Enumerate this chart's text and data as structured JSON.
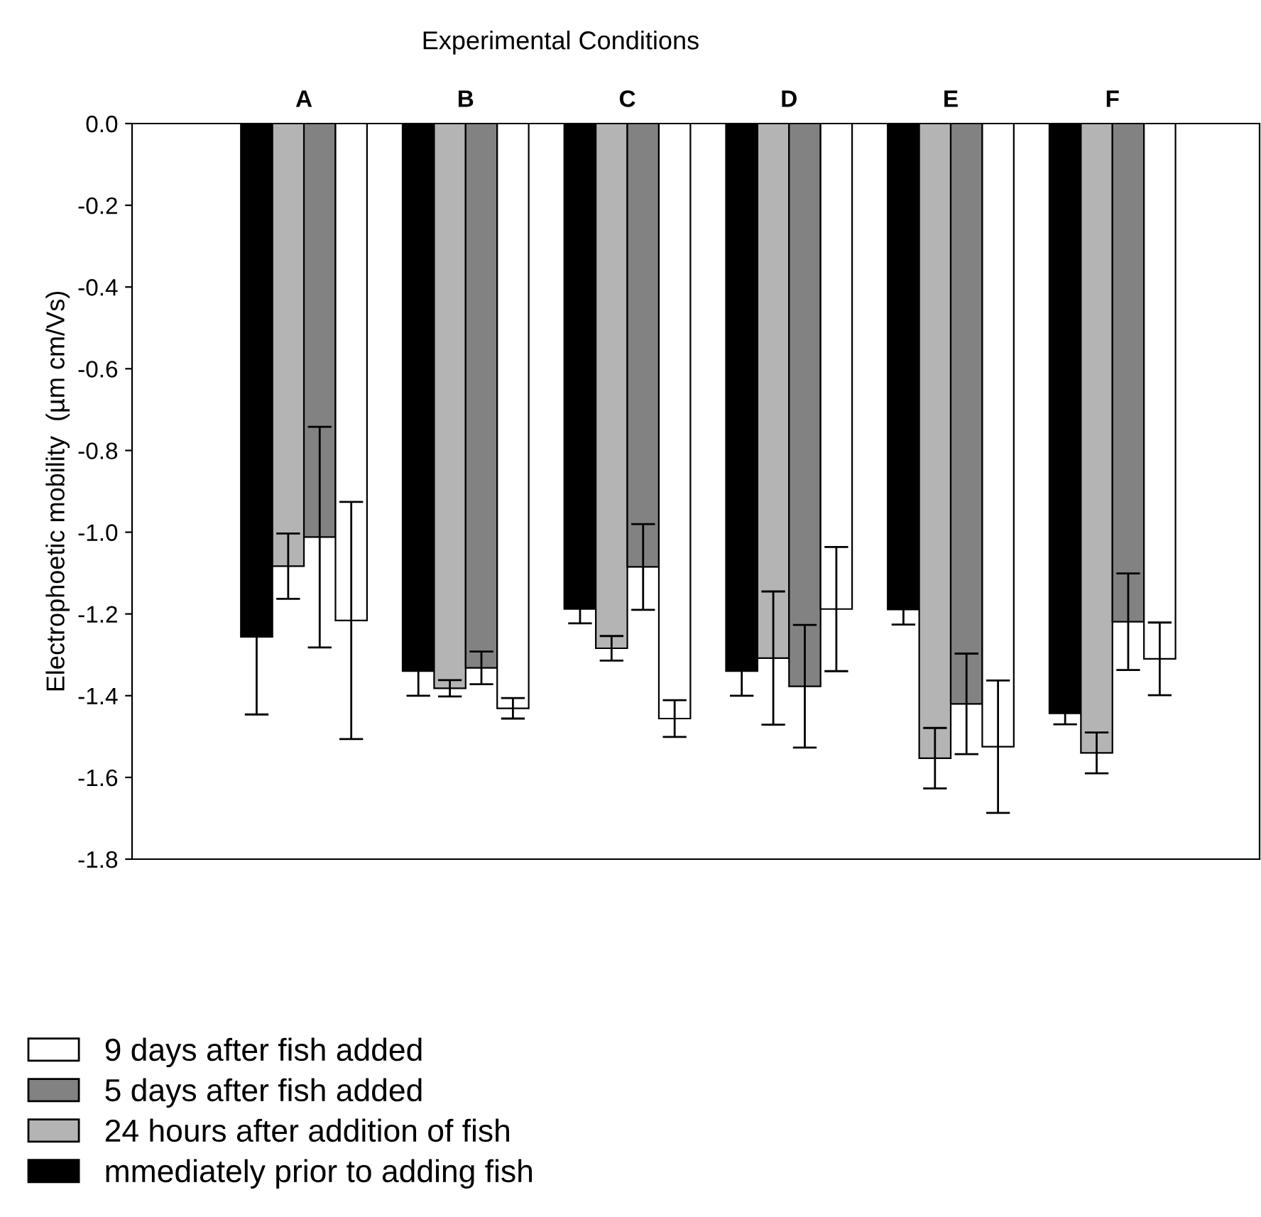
{
  "chart_data": {
    "type": "bar",
    "title": "Experimental Conditions",
    "ylabel": "Electrophoetic mobility  (µm cm/Vs)",
    "categories": [
      "A",
      "B",
      "C",
      "D",
      "E",
      "F"
    ],
    "ylim": [
      -1.8,
      0.0
    ],
    "yticks": [
      {
        "value": 0.0,
        "label": "0.0"
      },
      -0.2,
      -0.4,
      -0.6,
      -0.8,
      {
        "value": -1.0,
        "label": "-1.0"
      },
      -1.2,
      -1.4,
      -1.6,
      -1.8
    ],
    "grid": false,
    "legend": "bottom left",
    "series": [
      {
        "name": "mmediately prior to adding fish",
        "color": "#000000",
        "values": [
          -1.256,
          -1.34,
          -1.188,
          -1.34,
          -1.189,
          -1.443
        ],
        "errors": [
          0.19,
          0.06,
          0.035,
          0.06,
          0.037,
          0.027
        ]
      },
      {
        "name": "24 hours after addition of fish",
        "color": "#b4b4b4",
        "values": [
          -1.083,
          -1.382,
          -1.284,
          -1.308,
          -1.553,
          -1.54
        ],
        "errors": [
          0.08,
          0.02,
          0.03,
          0.163,
          0.074,
          0.05
        ]
      },
      {
        "name": "5 days after fish added",
        "color": "#828282",
        "values": [
          -1.012,
          -1.332,
          -1.085,
          -1.377,
          -1.42,
          -1.219
        ],
        "errors": [
          0.27,
          0.04,
          0.105,
          0.15,
          0.123,
          0.118
        ]
      },
      {
        "name": "9 days after fish added",
        "color": "#ffffff",
        "values": [
          -1.216,
          -1.431,
          -1.456,
          -1.188,
          -1.525,
          -1.31
        ],
        "errors": [
          0.29,
          0.025,
          0.045,
          0.152,
          0.162,
          0.089
        ]
      }
    ]
  }
}
